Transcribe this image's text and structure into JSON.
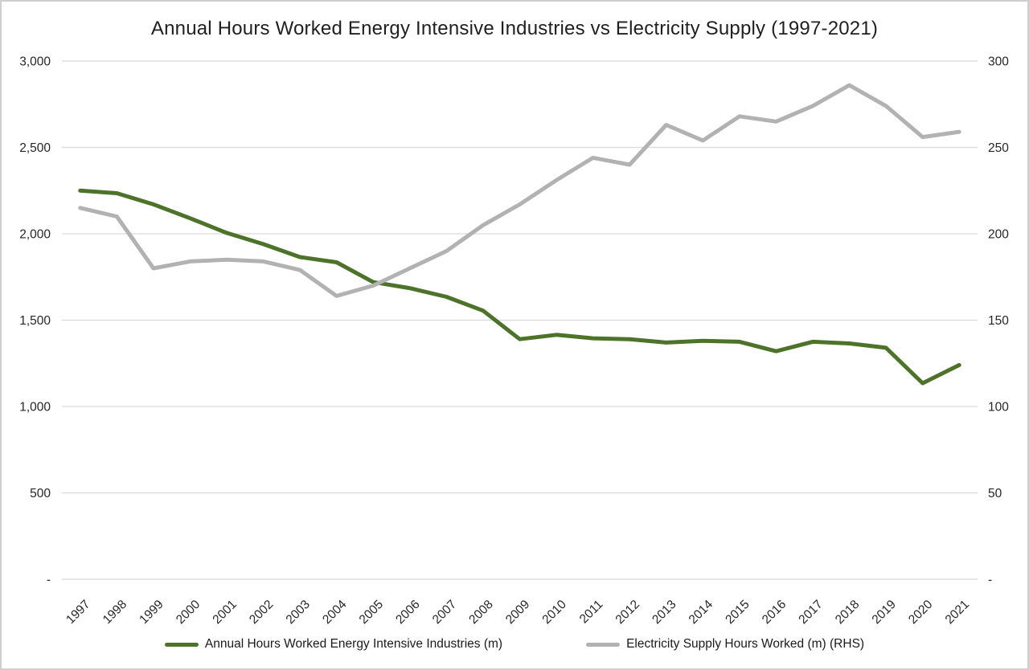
{
  "chart_data": {
    "type": "line",
    "title": "Annual Hours Worked Energy Intensive Industries vs Electricity Supply (1997-2021)",
    "x": [
      1997,
      1998,
      1999,
      2000,
      2001,
      2002,
      2003,
      2004,
      2005,
      2006,
      2007,
      2008,
      2009,
      2010,
      2011,
      2012,
      2013,
      2014,
      2015,
      2016,
      2017,
      2018,
      2019,
      2020,
      2021
    ],
    "series": [
      {
        "name": "Annual Hours Worked Energy Intensive Industries (m)",
        "axis": "left",
        "color": "#4c7329",
        "values": [
          2250,
          2235,
          2170,
          2090,
          2005,
          1940,
          1865,
          1835,
          1720,
          1685,
          1635,
          1555,
          1390,
          1415,
          1395,
          1390,
          1370,
          1380,
          1375,
          1320,
          1375,
          1365,
          1340,
          1135,
          1240
        ]
      },
      {
        "name": "Electricity Supply Hours Worked (m) (RHS)",
        "axis": "right",
        "color": "#b2b2b2",
        "values": [
          215,
          210,
          180,
          184,
          185,
          184,
          179,
          164,
          170,
          180,
          190,
          205,
          217,
          231,
          244,
          240,
          263,
          254,
          268,
          265,
          274,
          286,
          274,
          256,
          259
        ]
      }
    ],
    "left_axis": {
      "min": 0,
      "max": 3000,
      "step": 500,
      "tick_labels": [
        "-",
        "500",
        "1,000",
        "1,500",
        "2,000",
        "2,500",
        "3,000"
      ]
    },
    "right_axis": {
      "min": 0,
      "max": 300,
      "step": 50,
      "tick_labels": [
        "-",
        "50",
        "100",
        "150",
        "200",
        "250",
        "300"
      ]
    },
    "grid": true,
    "legend_position": "bottom",
    "colors": {
      "grid": "#d9d9d9",
      "axis_text": "#262626",
      "background": "#ffffff",
      "border": "#cfcfcf"
    }
  }
}
